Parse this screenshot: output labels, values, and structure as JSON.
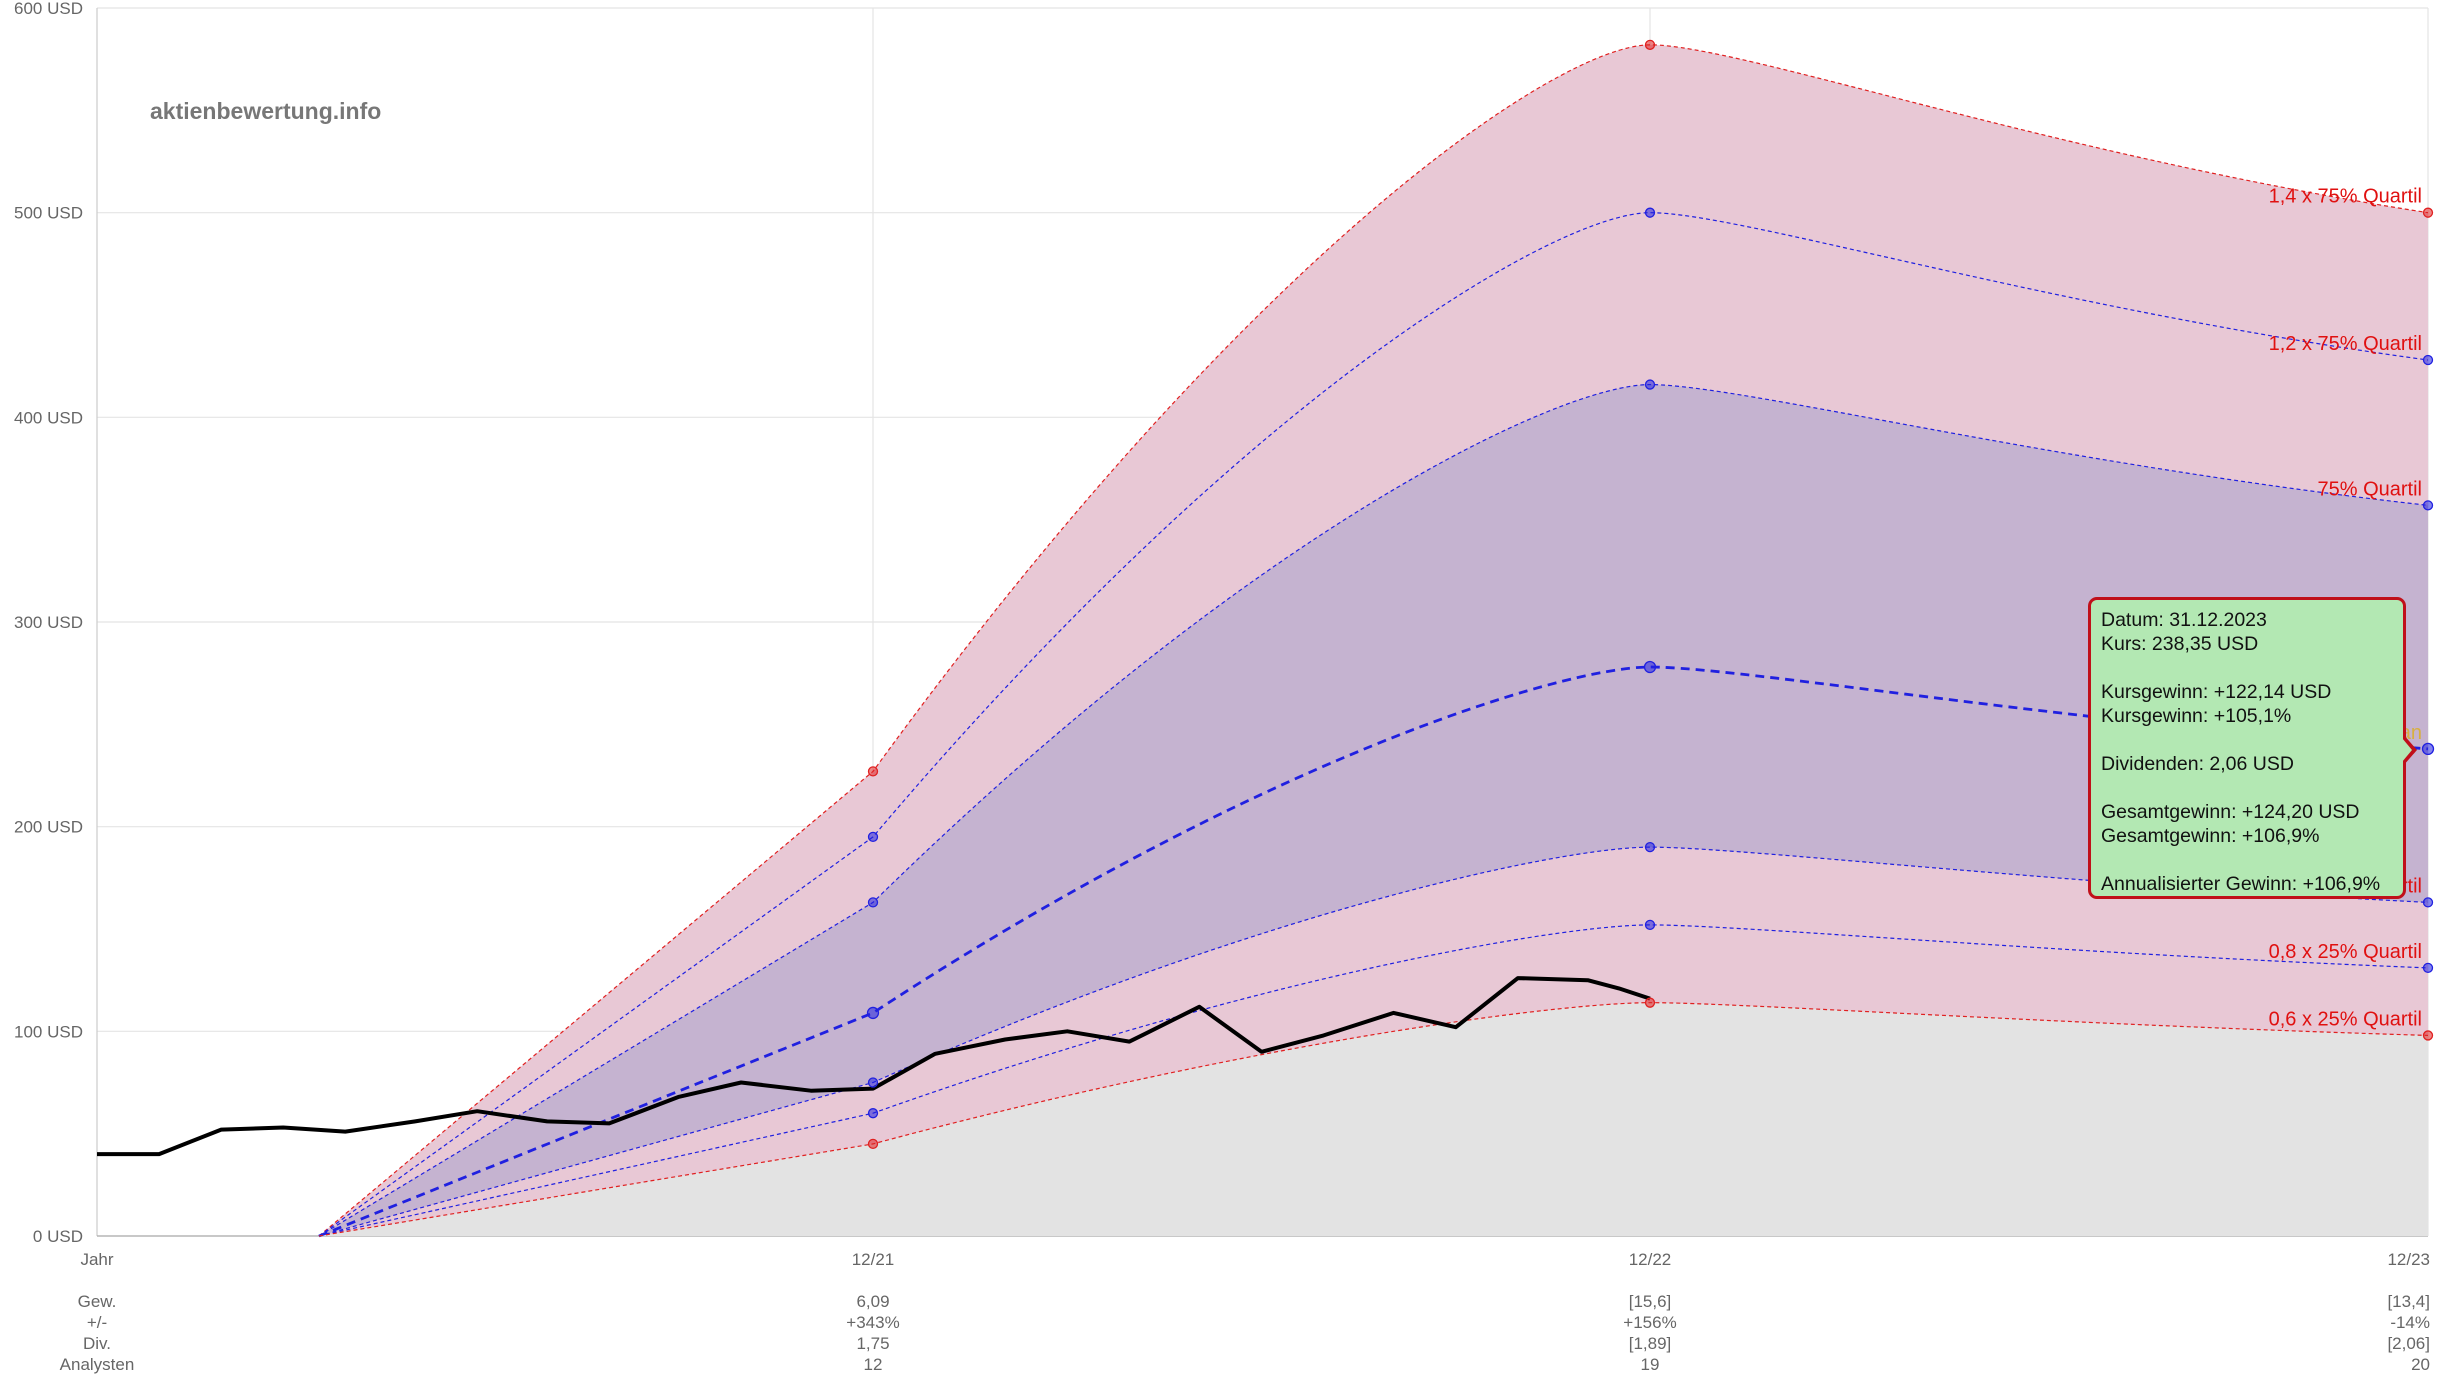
{
  "watermark": "aktienbewertung.info",
  "chart_data": {
    "type": "area",
    "y_axis": {
      "min": 0,
      "max": 600,
      "step": 100,
      "unit": "USD",
      "tick_labels": [
        "0 USD",
        "100 USD",
        "200 USD",
        "300 USD",
        "400 USD",
        "500 USD",
        "600 USD"
      ]
    },
    "x_axis": {
      "first_label": "Jahr",
      "categories": [
        "12/21",
        "12/22",
        "12/23"
      ]
    },
    "grid": true,
    "bands": [
      {
        "name": "1,4 x 75% Quartil",
        "color": "#e02020",
        "values": [
          227,
          582,
          500
        ]
      },
      {
        "name": "1,2 x 75% Quartil",
        "color": "#2020e0",
        "values": [
          195,
          500,
          428
        ]
      },
      {
        "name": "75% Quartil",
        "color": "#2020e0",
        "values": [
          163,
          416,
          357
        ]
      },
      {
        "name": "Median",
        "color": "#2020e0",
        "values": [
          109,
          278,
          238
        ]
      },
      {
        "name": "25% Quartil",
        "color": "#2020e0",
        "values": [
          75,
          190,
          163
        ]
      },
      {
        "name": "0,8 x 25% Quartil",
        "color": "#2020e0",
        "values": [
          60,
          152,
          131
        ]
      },
      {
        "name": "0,6 x 25% Quartil",
        "color": "#e02020",
        "values": [
          45,
          114,
          98
        ]
      }
    ],
    "visible_band_labels": [
      "1,4 x 75% Quartil",
      "1,2 x 75% Quartil",
      "75% Quartil",
      "Median",
      "Quartil",
      "0,8 x 25% Quartil",
      "0,6 x 25% Quartil"
    ],
    "price_series": {
      "x": [
        -1.0,
        -0.92,
        -0.84,
        -0.76,
        -0.68,
        -0.59,
        -0.51,
        -0.42,
        -0.34,
        -0.25,
        -0.17,
        -0.08,
        0.0,
        0.08,
        0.17,
        0.25,
        0.33,
        0.42,
        0.5,
        0.58,
        0.67,
        0.75,
        0.83,
        0.92,
        0.96,
        1.0
      ],
      "y": [
        40,
        40,
        52,
        53,
        51,
        56,
        61,
        56,
        55,
        68,
        75,
        71,
        72,
        89,
        96,
        100,
        95,
        112,
        90,
        98,
        109,
        102,
        126,
        125,
        121,
        116
      ]
    },
    "table": {
      "row_labels": [
        "Gew.",
        "+/-",
        "Div.",
        "Analysten"
      ],
      "columns": [
        [
          "6,09",
          "+343%",
          "1,75",
          "12"
        ],
        [
          "[15,6]",
          "+156%",
          "[1,89]",
          "19"
        ],
        [
          "[13,4]",
          "-14%",
          "[2,06]",
          "20"
        ]
      ]
    }
  },
  "tooltip": {
    "date": "Datum: 31.12.2023",
    "price": "Kurs: 238,35 USD",
    "gain_abs": "Kursgewinn: +122,14 USD",
    "gain_pct": "Kursgewinn: +105,1%",
    "dividends": "Dividenden: 2,06 USD",
    "total_abs": "Gesamtgewinn: +124,20 USD",
    "total_pct": "Gesamtgewinn: +106,9%",
    "annualized": "Annualisierter Gewinn: +106,9%"
  },
  "colors": {
    "outer_band": "#e8c8d5",
    "inner_band": "#c5b3d0",
    "below": "#e3e3e3",
    "price_line": "#000000",
    "tooltip_bg": "#b3e8b3",
    "tooltip_border": "#c0101a",
    "median_label": "#d8b040"
  }
}
